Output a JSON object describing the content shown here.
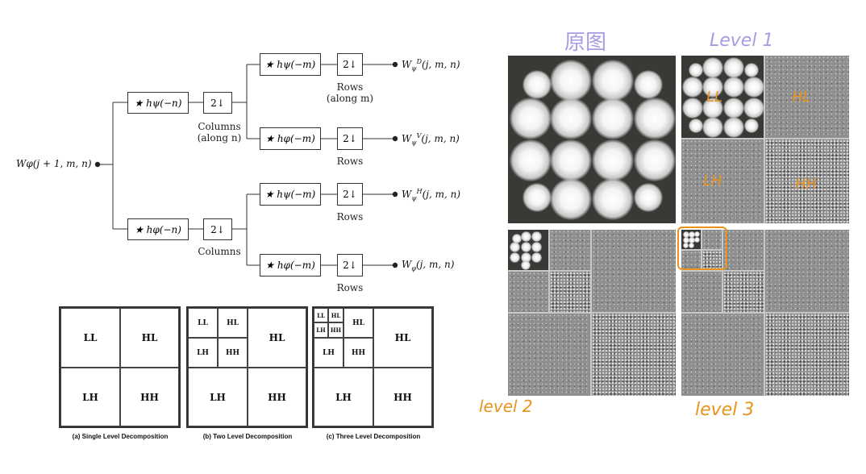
{
  "tree": {
    "input": "Wφ(j + 1, m, n)",
    "filters": {
      "col_top": "★ hψ(−n)",
      "col_bottom": "★ hφ(−n)",
      "row_1": "★ hψ(−m)",
      "row_2": "★ hφ(−m)",
      "row_3": "★ hψ(−m)",
      "row_4": "★ hφ(−m)"
    },
    "down": "2↓",
    "labels": {
      "columns_along_n": "Columns\n(along n)",
      "columns": "Columns",
      "rows_along_m": "Rows\n(along m)",
      "rows": "Rows"
    },
    "outputs": {
      "d": {
        "base": "W",
        "sub": "ψ",
        "sup": "D",
        "args": "(j, m, n)"
      },
      "v": {
        "base": "W",
        "sub": "ψ",
        "sup": "V",
        "args": "(j, m, n)"
      },
      "h": {
        "base": "W",
        "sub": "ψ",
        "sup": "H",
        "args": "(j, m, n)"
      },
      "a": {
        "base": "W",
        "sub": "φ",
        "sup": "",
        "args": "(j, m, n)"
      }
    }
  },
  "decompositions": {
    "quadrants": {
      "ll": "LL",
      "hl": "HL",
      "lh": "LH",
      "hh": "HH"
    },
    "captions": {
      "single": "(a) Single Level Decomposition",
      "two": "(b) Two Level Decomposition",
      "three": "(c) Three Level Decomposition"
    }
  },
  "images": {
    "labels": {
      "original": "原图",
      "level1": "Level 1",
      "level2": "level 2",
      "level3": "level 3"
    },
    "annotations": {
      "ll": "LL",
      "hl": "HL",
      "lh": "LH",
      "hh": "HH"
    }
  },
  "colors": {
    "purple": "#a99ae4",
    "orange": "#e8931c",
    "line": "#333333",
    "dark_bg": "#3a3936",
    "gray": "#8f8f8f"
  }
}
